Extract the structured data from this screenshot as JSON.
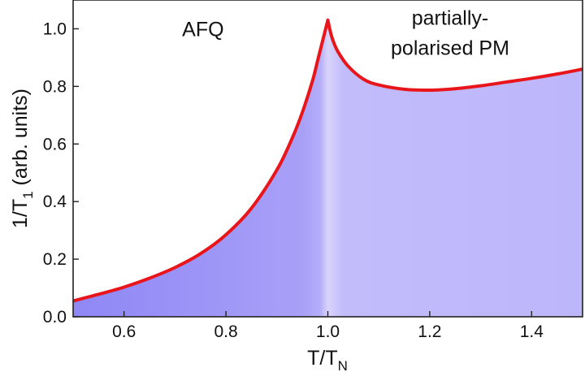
{
  "chart_data": {
    "type": "area",
    "title": "",
    "xlabel": {
      "main": "T/T",
      "sub": "N"
    },
    "ylabel": {
      "pre": "1/T",
      "sub": "1",
      "post": " (arb. units)"
    },
    "xlim": [
      0.5,
      1.5
    ],
    "ylim": [
      0.0,
      1.1
    ],
    "xticks": [
      "0.6",
      "0.8",
      "1.0",
      "1.2",
      "1.4"
    ],
    "xtick_values": [
      0.6,
      0.8,
      1.0,
      1.2,
      1.4
    ],
    "yticks": [
      "0.0",
      "0.2",
      "0.4",
      "0.6",
      "0.8",
      "1.0"
    ],
    "ytick_values": [
      0.0,
      0.2,
      0.4,
      0.6,
      0.8,
      1.0
    ],
    "grid": false,
    "series": [
      {
        "name": "1/T1",
        "color": "#e8161b",
        "fill_left": "#8f87f5",
        "fill_peak": "#d8d4fb",
        "fill_right": "#bdb6fb",
        "x": [
          0.5,
          0.55,
          0.6,
          0.65,
          0.7,
          0.75,
          0.8,
          0.85,
          0.9,
          0.93,
          0.95,
          0.97,
          0.98,
          0.99,
          0.995,
          1.0,
          1.005,
          1.01,
          1.02,
          1.04,
          1.07,
          1.1,
          1.15,
          1.2,
          1.25,
          1.3,
          1.35,
          1.4,
          1.45,
          1.5
        ],
        "y": [
          0.055,
          0.078,
          0.103,
          0.134,
          0.171,
          0.219,
          0.285,
          0.377,
          0.51,
          0.62,
          0.71,
          0.82,
          0.89,
          0.96,
          0.995,
          1.03,
          0.99,
          0.96,
          0.92,
          0.87,
          0.825,
          0.805,
          0.79,
          0.787,
          0.792,
          0.802,
          0.815,
          0.828,
          0.843,
          0.86
        ]
      }
    ],
    "annotations": [
      {
        "text": "AFQ",
        "x": 0.755,
        "y": 1.0
      },
      {
        "text": "partially-",
        "x": 1.24,
        "y": 1.04
      },
      {
        "text": "polarised PM",
        "x": 1.24,
        "y": 0.935
      }
    ]
  }
}
